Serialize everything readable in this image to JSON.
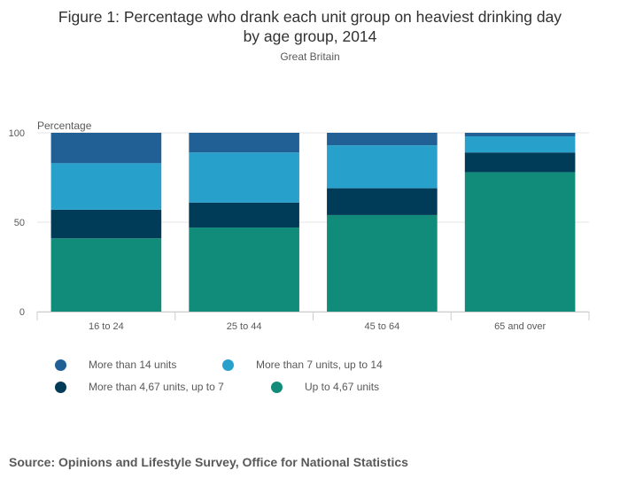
{
  "title_line1": "Figure 1: Percentage who drank each unit group on heaviest drinking day",
  "title_line2": "by age group, 2014",
  "subtitle": "Great Britain",
  "source": "Source: Opinions and Lifestyle Survey, Office for National Statistics",
  "chart_data": {
    "type": "bar",
    "stacked": true,
    "ylabel": "Percentage",
    "ylim": [
      0,
      100
    ],
    "yticks": [
      0,
      50,
      100
    ],
    "categories": [
      "16 to 24",
      "25 to 44",
      "45 to 64",
      "65 and over"
    ],
    "series": [
      {
        "name": "Up to 4,67 units",
        "color": "#118c7b",
        "values": [
          41,
          47,
          54,
          78
        ]
      },
      {
        "name": "More than 4,67 units, up to 7",
        "color": "#003c57",
        "values": [
          16,
          14,
          15,
          11
        ]
      },
      {
        "name": "More than 7 units, up to 14",
        "color": "#27a0cc",
        "values": [
          26,
          28,
          24,
          9
        ]
      },
      {
        "name": "More than 14 units",
        "color": "#206095",
        "values": [
          17,
          11,
          7,
          2
        ]
      }
    ],
    "legend_order": [
      "More than 14 units",
      "More than 7 units, up to 14",
      "More than 4,67 units, up to 7",
      "Up to 4,67 units"
    ],
    "grid": true,
    "legend_position": "bottom"
  }
}
